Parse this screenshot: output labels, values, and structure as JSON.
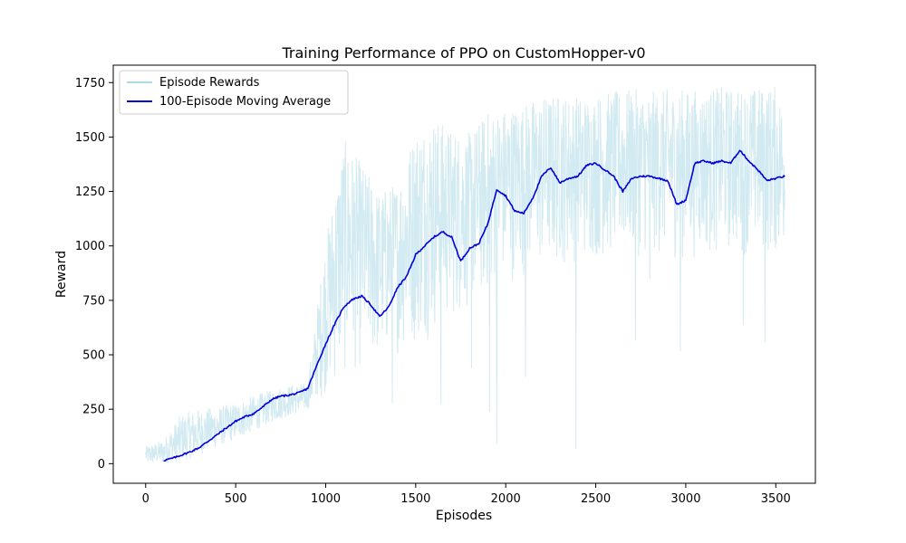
{
  "chart_data": {
    "type": "line",
    "title": "Training Performance of PPO on CustomHopper-v0",
    "xlabel": "Episodes",
    "ylabel": "Reward",
    "xlim": [
      -180,
      3720
    ],
    "ylim": [
      -90,
      1830
    ],
    "xticks": [
      0,
      500,
      1000,
      1500,
      2000,
      2500,
      3000,
      3500
    ],
    "yticks": [
      0,
      250,
      500,
      750,
      1000,
      1250,
      1500,
      1750
    ],
    "grid": false,
    "legend_position": "top-left",
    "series": [
      {
        "name": "Episode Rewards",
        "color": "#add8e6",
        "style": "thin-noisy",
        "lower_envelope": [
          [
            0,
            0
          ],
          [
            100,
            0
          ],
          [
            200,
            10
          ],
          [
            300,
            40
          ],
          [
            400,
            80
          ],
          [
            500,
            110
          ],
          [
            600,
            150
          ],
          [
            700,
            190
          ],
          [
            800,
            220
          ],
          [
            900,
            250
          ],
          [
            1000,
            320
          ],
          [
            1100,
            380
          ],
          [
            1200,
            430
          ],
          [
            1300,
            460
          ],
          [
            1400,
            500
          ],
          [
            1500,
            540
          ],
          [
            1600,
            580
          ],
          [
            1700,
            650
          ],
          [
            1800,
            700
          ],
          [
            1900,
            760
          ],
          [
            2000,
            820
          ],
          [
            2100,
            860
          ],
          [
            2200,
            880
          ],
          [
            2300,
            900
          ],
          [
            2400,
            920
          ],
          [
            2500,
            930
          ],
          [
            2600,
            940
          ],
          [
            2700,
            950
          ],
          [
            2800,
            950
          ],
          [
            2900,
            940
          ],
          [
            3000,
            930
          ],
          [
            3100,
            950
          ],
          [
            3200,
            960
          ],
          [
            3300,
            960
          ],
          [
            3400,
            950
          ],
          [
            3500,
            940
          ],
          [
            3550,
            940
          ]
        ],
        "upper_envelope": [
          [
            0,
            80
          ],
          [
            100,
            110
          ],
          [
            200,
            230
          ],
          [
            300,
            250
          ],
          [
            400,
            260
          ],
          [
            500,
            280
          ],
          [
            600,
            310
          ],
          [
            700,
            340
          ],
          [
            800,
            360
          ],
          [
            900,
            370
          ],
          [
            1000,
            1030
          ],
          [
            1100,
            1490
          ],
          [
            1200,
            1380
          ],
          [
            1300,
            1250
          ],
          [
            1400,
            1300
          ],
          [
            1500,
            1550
          ],
          [
            1600,
            1600
          ],
          [
            1700,
            1540
          ],
          [
            1800,
            1520
          ],
          [
            1900,
            1620
          ],
          [
            2000,
            1640
          ],
          [
            2100,
            1660
          ],
          [
            2200,
            1690
          ],
          [
            2300,
            1700
          ],
          [
            2400,
            1690
          ],
          [
            2500,
            1700
          ],
          [
            2600,
            1710
          ],
          [
            2700,
            1720
          ],
          [
            2800,
            1710
          ],
          [
            2900,
            1720
          ],
          [
            3000,
            1720
          ],
          [
            3100,
            1720
          ],
          [
            3200,
            1730
          ],
          [
            3300,
            1720
          ],
          [
            3400,
            1730
          ],
          [
            3500,
            1740
          ],
          [
            3550,
            1640
          ]
        ],
        "dips": [
          [
            1370,
            280
          ],
          [
            1640,
            275
          ],
          [
            1810,
            440
          ],
          [
            1910,
            240
          ],
          [
            1950,
            90
          ],
          [
            2110,
            400
          ],
          [
            2390,
            70
          ],
          [
            2720,
            570
          ],
          [
            2800,
            850
          ],
          [
            2970,
            520
          ],
          [
            3320,
            640
          ],
          [
            3440,
            560
          ]
        ]
      },
      {
        "name": "100-Episode Moving Average",
        "color": "#0000dd",
        "style": "solid",
        "x": [
          100,
          150,
          200,
          250,
          300,
          350,
          400,
          450,
          500,
          550,
          600,
          650,
          700,
          750,
          800,
          850,
          900,
          950,
          1000,
          1050,
          1100,
          1150,
          1200,
          1250,
          1300,
          1350,
          1400,
          1450,
          1500,
          1550,
          1600,
          1650,
          1700,
          1750,
          1800,
          1850,
          1900,
          1950,
          2000,
          2050,
          2100,
          2150,
          2200,
          2250,
          2300,
          2350,
          2400,
          2450,
          2500,
          2550,
          2600,
          2650,
          2700,
          2750,
          2800,
          2850,
          2900,
          2950,
          3000,
          3050,
          3100,
          3150,
          3200,
          3250,
          3300,
          3350,
          3400,
          3450,
          3500,
          3550
        ],
        "values": [
          15,
          25,
          40,
          55,
          75,
          105,
          135,
          165,
          195,
          215,
          230,
          260,
          295,
          310,
          315,
          325,
          345,
          450,
          550,
          640,
          720,
          755,
          770,
          730,
          675,
          720,
          810,
          860,
          960,
          1000,
          1040,
          1065,
          1040,
          930,
          990,
          1010,
          1100,
          1260,
          1230,
          1160,
          1150,
          1220,
          1320,
          1360,
          1290,
          1310,
          1320,
          1370,
          1380,
          1350,
          1320,
          1250,
          1310,
          1320,
          1320,
          1310,
          1300,
          1190,
          1210,
          1380,
          1390,
          1380,
          1390,
          1380,
          1440,
          1390,
          1350,
          1300,
          1310,
          1320
        ]
      }
    ]
  }
}
